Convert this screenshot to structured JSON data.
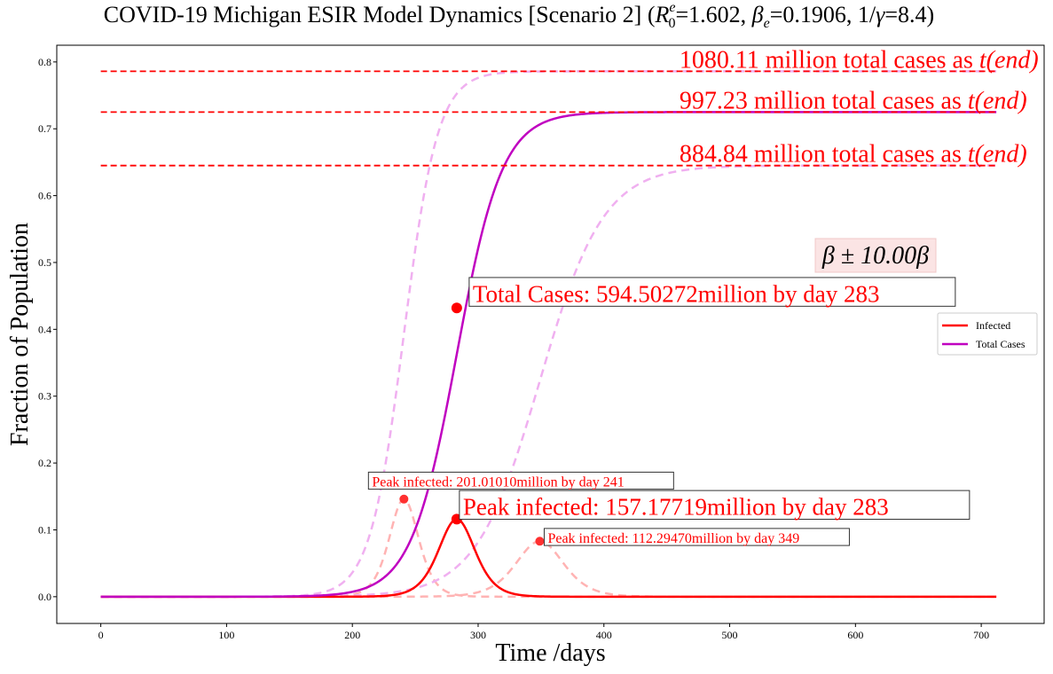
{
  "chart_data": {
    "type": "line",
    "title_parts": {
      "prefix": "COVID-19 Michigan ESIR Model Dynamics [Scenario 2] (",
      "r0_symbol": "R",
      "r0_sup": "e",
      "r0_sub": "0",
      "r0_value": "=1.602, ",
      "beta_symbol": "β",
      "beta_sub": "e",
      "beta_value": "=0.1906, 1/",
      "gamma_symbol": "γ",
      "gamma_value": "=8.4)"
    },
    "xlabel": "Time /days",
    "ylabel": "Fraction of Population",
    "xlim": [
      -35,
      750
    ],
    "ylim": [
      -0.04,
      0.825
    ],
    "xticks": [
      0,
      100,
      200,
      300,
      400,
      500,
      600,
      700
    ],
    "yticks": [
      0.0,
      0.1,
      0.2,
      0.3,
      0.4,
      0.5,
      0.6,
      0.7,
      0.8
    ],
    "ytick_labels": [
      "0.0",
      "0.1",
      "0.2",
      "0.3",
      "0.4",
      "0.5",
      "0.6",
      "0.7",
      "0.8"
    ],
    "x_end": 712,
    "grid": false,
    "legend_position": "center-right",
    "legend": [
      {
        "label": "Infected",
        "color": "#ff0000"
      },
      {
        "label": "Total Cases",
        "color": "#c000c0"
      }
    ],
    "series": [
      {
        "name": "Infected",
        "role": "infected",
        "scenario": "baseline",
        "color": "#ff0000",
        "style": "solid",
        "peak_day": 283,
        "peak_value": 0.116,
        "final_value": null
      },
      {
        "name": "Total Cases",
        "role": "total",
        "scenario": "baseline",
        "color": "#c000c0",
        "style": "solid",
        "midpoint_day": 283,
        "final_value": 0.725
      },
      {
        "role": "infected",
        "scenario": "high beta",
        "color": "#ffb3b3",
        "style": "dashed",
        "peak_day": 241,
        "peak_value": 0.146
      },
      {
        "role": "total",
        "scenario": "high beta",
        "color": "#f0b0f0",
        "style": "dashed",
        "midpoint_day": 241,
        "final_value": 0.786
      },
      {
        "role": "infected",
        "scenario": "low beta",
        "color": "#ffb3b3",
        "style": "dashed",
        "peak_day": 349,
        "peak_value": 0.083
      },
      {
        "role": "total",
        "scenario": "low beta",
        "color": "#f0b0f0",
        "style": "dashed",
        "midpoint_day": 349,
        "final_value": 0.645
      }
    ],
    "hlines": [
      {
        "y": 0.786,
        "color": "#ff0000",
        "label_prefix": "1080.11 million total cases as ",
        "label_math": "t(end)"
      },
      {
        "y": 0.725,
        "color": "#ff0000",
        "label_prefix": "997.23 million total cases as ",
        "label_math": "t(end)"
      },
      {
        "y": 0.645,
        "color": "#ff0000",
        "label_prefix": "884.84 million total cases as ",
        "label_math": "t(end)"
      }
    ],
    "markers": [
      {
        "day": 283,
        "value": 0.432,
        "label": "Total Cases: 594.50272million by day 283",
        "size": "large"
      },
      {
        "day": 283,
        "value": 0.116,
        "label": "Peak infected: 157.17719million by day 283",
        "size": "large"
      },
      {
        "day": 241,
        "value": 0.146,
        "label": "Peak infected: 201.01010million by day 241",
        "size": "small"
      },
      {
        "day": 349,
        "value": 0.083,
        "label": "Peak infected: 112.29470million by day 349",
        "size": "small"
      }
    ],
    "beta_annotation": "β ± 10.00β"
  },
  "colors": {
    "infected": "#ff0000",
    "total": "#c000c0",
    "infected_faint": "#ffb3b3",
    "total_faint": "#f0b0f0",
    "hline": "#ff0000",
    "beta_box_bg": "#fbe4e4"
  }
}
